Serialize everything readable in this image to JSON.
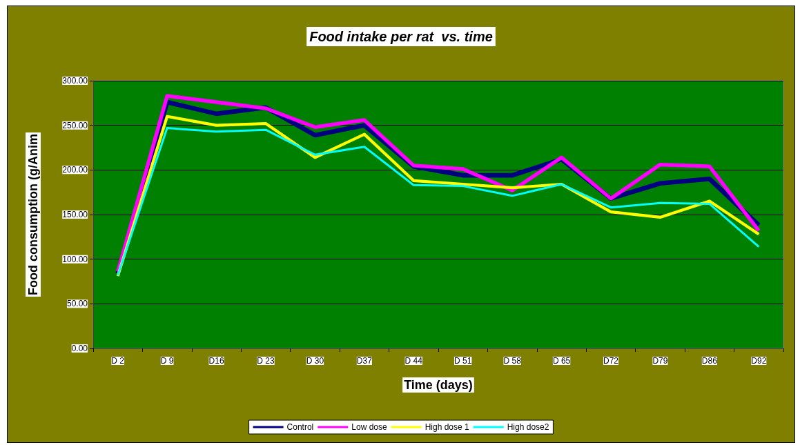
{
  "chart_data": {
    "type": "line",
    "title": "Food intake per rat  vs. time",
    "xlabel": "Time (days)",
    "ylabel": "Food consumption (g/Anim",
    "categories": [
      "D 2",
      "D 9",
      "D16",
      "D 23",
      "D 30",
      "D37",
      "D 44",
      "D 51",
      "D 58",
      "D 65",
      "D72",
      "D79",
      "D86",
      "D92"
    ],
    "series": [
      {
        "name": "Control",
        "color": "#000080",
        "values": [
          84,
          276,
          263,
          270,
          239,
          250,
          204,
          194,
          194,
          212,
          168,
          185,
          190,
          138
        ]
      },
      {
        "name": "Low dose",
        "color": "#ff00ff",
        "values": [
          86,
          283,
          276,
          269,
          248,
          256,
          205,
          201,
          177,
          214,
          168,
          206,
          204,
          132
        ]
      },
      {
        "name": "High dose 1",
        "color": "#ffff00",
        "values": [
          81,
          260,
          250,
          252,
          214,
          240,
          188,
          184,
          180,
          184,
          153,
          147,
          165,
          128
        ]
      },
      {
        "name": "High dose2",
        "color": "#00ffff",
        "values": [
          82,
          247,
          243,
          245,
          217,
          226,
          183,
          182,
          171,
          184,
          158,
          163,
          162,
          114
        ]
      }
    ],
    "ylim": [
      0,
      300
    ],
    "yticks": [
      {
        "value": 0,
        "label": "0.00"
      },
      {
        "value": 50,
        "label": "50.00"
      },
      {
        "value": 100,
        "label": "100.00"
      },
      {
        "value": 150,
        "label": "150.00"
      },
      {
        "value": 200,
        "label": "200.00"
      },
      {
        "value": 250,
        "label": "250.00"
      },
      {
        "value": 300,
        "label": "300.00"
      }
    ],
    "grid": "y",
    "legend": "bottom",
    "marker": "none",
    "line_style": "solid"
  }
}
